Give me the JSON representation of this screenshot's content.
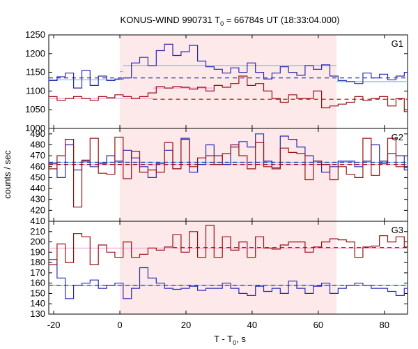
{
  "chart_data": {
    "type": "line",
    "title": "KONUS-WIND 990731 T",
    "title_sub": "0",
    "title_tail": " = 66784s UT (18:33:04.000)",
    "xlabel": "T - T",
    "xlabel_sub": "0",
    "xlabel_tail": ", s",
    "ylabel": "counts / sec",
    "xlim": [
      -21.5,
      87
    ],
    "xticks": [
      "-20",
      "0",
      "20",
      "40",
      "60",
      "80"
    ],
    "shaded_interval": [
      0,
      65.5
    ],
    "colors": {
      "blue": "#2a2ab4",
      "red": "#9b1010",
      "cyan": "#5ac8ee",
      "pink": "#f2a0d8",
      "shade": "#fde8ea"
    },
    "bin_edges": [
      -21.5,
      -19,
      -16.5,
      -14,
      -11.5,
      -9,
      -6.5,
      -4,
      -1.5,
      1,
      3.5,
      6,
      8.5,
      11,
      13.5,
      16,
      18.5,
      21,
      23.5,
      26,
      28.5,
      31,
      33.5,
      36,
      38.5,
      41,
      43.5,
      46,
      48.5,
      51,
      53.5,
      56,
      58.5,
      61,
      63.5,
      66,
      68.5,
      71,
      73.5,
      76,
      78.5,
      81,
      83.5,
      86,
      87
    ],
    "panels": [
      {
        "label": "G1",
        "ylim": [
          1000,
          1250
        ],
        "yticks": [
          "1000",
          "1050",
          "1100",
          "1150",
          "1200",
          "1250"
        ],
        "series": [
          {
            "color": "blue",
            "values": [
              1128,
              1138,
              1148,
              1108,
              1155,
              1115,
              1140,
              1128,
              1132,
              1135,
              1175,
              1190,
              1168,
              1208,
              1225,
              1195,
              1205,
              1222,
              1180,
              1165,
              1158,
              1148,
              1162,
              1150,
              1175,
              1150,
              1132,
              1148,
              1165,
              1150,
              1142,
              1168,
              1158,
              1170,
              1140,
              1128,
              1125,
              1120,
              1148,
              1135,
              1145,
              1130,
              1140,
              1150
            ]
          },
          {
            "color": "red",
            "values": [
              1085,
              1075,
              1080,
              1085,
              1080,
              1075,
              1085,
              1082,
              1090,
              1085,
              1080,
              1085,
              1095,
              1112,
              1108,
              1112,
              1110,
              1105,
              1110,
              1100,
              1115,
              1110,
              1120,
              1140,
              1115,
              1120,
              1100,
              1080,
              1070,
              1090,
              1080,
              1080,
              1100,
              1055,
              1060,
              1065,
              1070,
              1085,
              1075,
              1080,
              1085,
              1060,
              1080,
              1045
            ]
          }
        ],
        "fits": [
          {
            "color": "cyan",
            "dash": false,
            "segments": [
              [
                -21.5,
                0,
                1130
              ],
              [
                0,
                1,
                1152
              ],
              [
                1,
                65.5,
                1168
              ],
              [
                65.5,
                87,
                1125
              ]
            ]
          },
          {
            "color": "blue",
            "dash": true,
            "segments": [
              [
                -21.5,
                87,
                1135
              ]
            ]
          },
          {
            "color": "pink",
            "dash": false,
            "segments": [
              [
                -21.5,
                10,
                1080
              ],
              [
                10,
                28,
                1108
              ]
            ]
          },
          {
            "color": "red",
            "dash": true,
            "segments": [
              [
                10,
                87,
                1078
              ]
            ]
          }
        ]
      },
      {
        "label": "G2",
        "ylim": [
          410,
          495
        ],
        "yticks": [
          "410",
          "420",
          "430",
          "440",
          "450",
          "460",
          "470",
          "480",
          "490"
        ],
        "series": [
          {
            "color": "blue",
            "values": [
              463,
              450,
              480,
              457,
              465,
              460,
              463,
              470,
              465,
              475,
              468,
              460,
              450,
              463,
              475,
              458,
              486,
              455,
              462,
              480,
              470,
              462,
              478,
              483,
              478,
              490,
              465,
              459,
              488,
              485,
              478,
              470,
              465,
              455,
              460,
              465,
              465,
              460,
              465,
              480,
              465,
              472,
              470,
              457
            ]
          },
          {
            "color": "red",
            "values": [
              458,
              470,
              485,
              423,
              466,
              486,
              454,
              453,
              487,
              449,
              474,
              455,
              457,
              455,
              482,
              458,
              485,
              460,
              468,
              470,
              462,
              472,
              480,
              470,
              458,
              482,
              460,
              458,
              477,
              473,
              472,
              448,
              465,
              462,
              448,
              460,
              453,
              450,
              486,
              452,
              463,
              486,
              460,
              459
            ]
          }
        ],
        "fits": [
          {
            "color": "cyan",
            "dash": false,
            "segments": [
              [
                -21.5,
                87,
                464
              ]
            ]
          },
          {
            "color": "blue",
            "dash": true,
            "segments": [
              [
                -21.5,
                87,
                464
              ]
            ]
          },
          {
            "color": "pink",
            "dash": false,
            "segments": [
              [
                -21.5,
                87,
                462
              ]
            ]
          },
          {
            "color": "red",
            "dash": true,
            "segments": [
              [
                -21.5,
                87,
                462
              ]
            ]
          }
        ]
      },
      {
        "label": "G3",
        "ylim": [
          130,
          220
        ],
        "yticks": [
          "130",
          "140",
          "150",
          "160",
          "170",
          "180",
          "190",
          "200",
          "210"
        ],
        "series": [
          {
            "color": "blue",
            "values": [
              183,
              165,
              145,
              158,
              160,
              163,
              155,
              158,
              160,
              145,
              155,
              175,
              165,
              160,
              155,
              154,
              155,
              157,
              153,
              155,
              155,
              160,
              155,
              150,
              148,
              157,
              152,
              155,
              150,
              162,
              155,
              150,
              157,
              160,
              150,
              155,
              158,
              160,
              158,
              155,
              155,
              152,
              148,
              155
            ]
          },
          {
            "color": "red",
            "values": [
              178,
              198,
              180,
              208,
              205,
              178,
              197,
              190,
              185,
              200,
              185,
              188,
              194,
              192,
              195,
              207,
              190,
              210,
              185,
              216,
              185,
              205,
              192,
              200,
              185,
              205,
              194,
              193,
              197,
              200,
              200,
              190,
              195,
              200,
              203,
              202,
              200,
              185,
              195,
              196,
              206,
              200,
              205,
              195
            ]
          }
        ],
        "fits": [
          {
            "color": "cyan",
            "dash": false,
            "segments": [
              [
                -21.5,
                87,
                158
              ]
            ]
          },
          {
            "color": "blue",
            "dash": true,
            "segments": [
              [
                -21.5,
                87,
                158
              ]
            ]
          },
          {
            "color": "pink",
            "dash": false,
            "segments": [
              [
                -21.5,
                87,
                194
              ]
            ]
          },
          {
            "color": "red",
            "dash": true,
            "segments": [
              [
                16,
                87,
                194.5
              ]
            ]
          }
        ]
      }
    ]
  }
}
